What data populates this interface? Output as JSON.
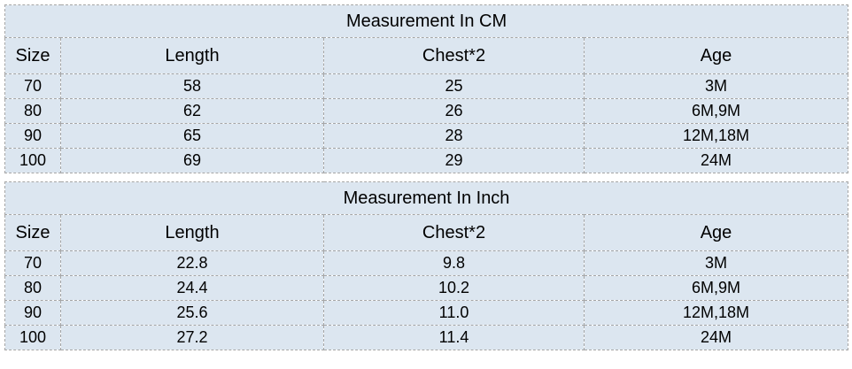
{
  "colors": {
    "cell_background": "#dce6f0",
    "border": "#a6a6a6",
    "text": "#000000",
    "page_background": "#ffffff"
  },
  "tables": [
    {
      "title": "Measurement In CM",
      "columns": [
        "Size",
        "Length",
        "Chest*2",
        "Age"
      ],
      "rows": [
        [
          "70",
          "58",
          "25",
          "3M"
        ],
        [
          "80",
          "62",
          "26",
          "6M,9M"
        ],
        [
          "90",
          "65",
          "28",
          "12M,18M"
        ],
        [
          "100",
          "69",
          "29",
          "24M"
        ]
      ]
    },
    {
      "title": "Measurement In Inch",
      "columns": [
        "Size",
        "Length",
        "Chest*2",
        "Age"
      ],
      "rows": [
        [
          "70",
          "22.8",
          "9.8",
          "3M"
        ],
        [
          "80",
          "24.4",
          "10.2",
          "6M,9M"
        ],
        [
          "90",
          "25.6",
          "11.0",
          "12M,18M"
        ],
        [
          "100",
          "27.2",
          "11.4",
          "24M"
        ]
      ]
    }
  ],
  "chart_data": [
    {
      "type": "table",
      "title": "Measurement In CM",
      "columns": [
        "Size",
        "Length",
        "Chest*2",
        "Age"
      ],
      "rows": [
        [
          "70",
          "58",
          "25",
          "3M"
        ],
        [
          "80",
          "62",
          "26",
          "6M,9M"
        ],
        [
          "90",
          "65",
          "28",
          "12M,18M"
        ],
        [
          "100",
          "69",
          "29",
          "24M"
        ]
      ]
    },
    {
      "type": "table",
      "title": "Measurement In Inch",
      "columns": [
        "Size",
        "Length",
        "Chest*2",
        "Age"
      ],
      "rows": [
        [
          "70",
          "22.8",
          "9.8",
          "3M"
        ],
        [
          "80",
          "24.4",
          "10.2",
          "6M,9M"
        ],
        [
          "90",
          "25.6",
          "11.0",
          "12M,18M"
        ],
        [
          "100",
          "27.2",
          "11.4",
          "24M"
        ]
      ]
    }
  ]
}
